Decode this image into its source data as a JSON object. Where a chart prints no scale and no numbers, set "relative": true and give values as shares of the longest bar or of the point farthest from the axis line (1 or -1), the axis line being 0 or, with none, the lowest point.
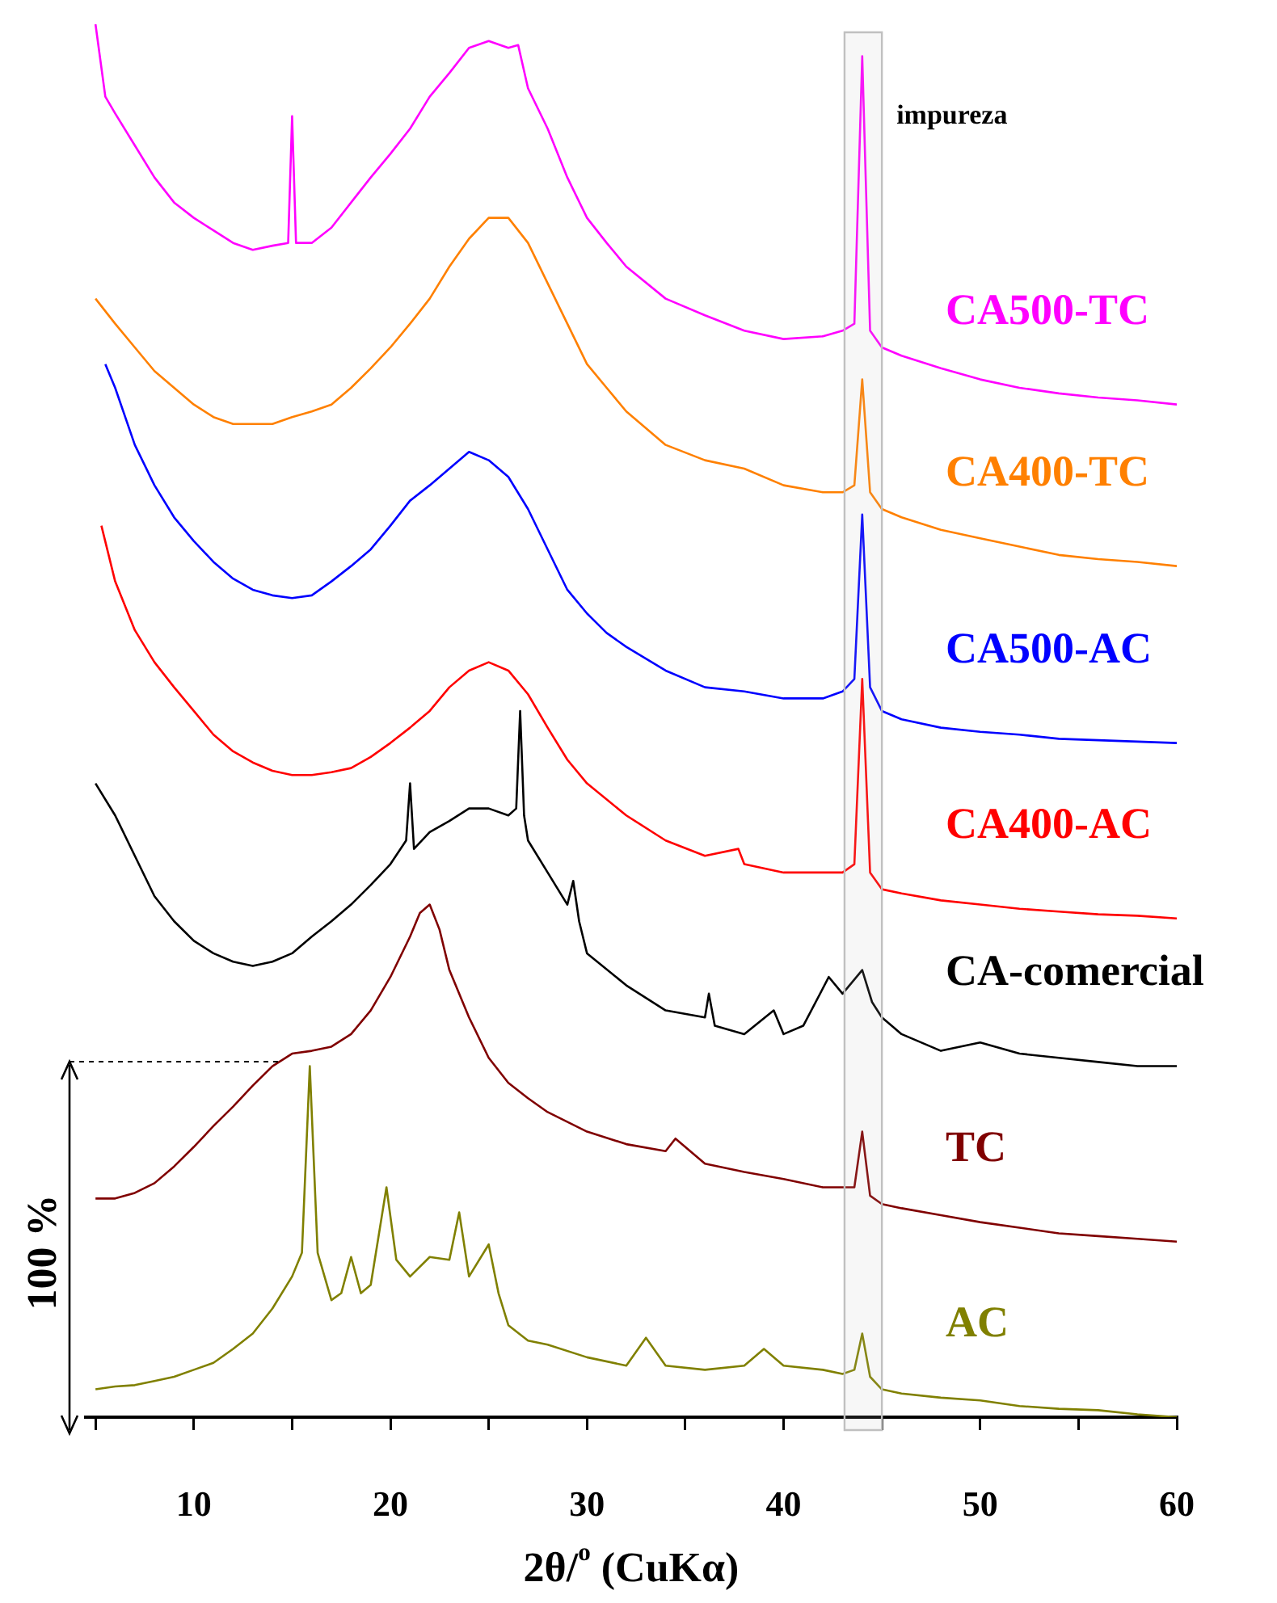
{
  "chart_data": {
    "type": "line",
    "relative": true,
    "xlabel": "2θ/$^{o}$ (CuKα)",
    "xlim": [
      4.5,
      60
    ],
    "tick_labels": "x",
    "xticks": [
      {
        "value": 5,
        "label": null
      },
      10,
      {
        "value": 15,
        "label": null
      },
      20,
      {
        "value": 25,
        "label": null
      },
      30,
      {
        "value": 35,
        "label": null
      },
      40,
      {
        "value": 45,
        "label": null
      },
      50,
      {
        "value": 55,
        "label": null
      },
      60
    ],
    "bands": [
      {
        "axis": "x",
        "from": 43.1,
        "to": 45.0,
        "label": "impureza",
        "color": "#c0c0c0"
      }
    ],
    "annotations": [
      "100 %"
    ],
    "series": [
      {
        "name": "CA500-TC",
        "color": "#ff00ff",
        "x": [
          5,
          5.5,
          6,
          7,
          8,
          9,
          10,
          11,
          12,
          13,
          14,
          14.8,
          15,
          15.2,
          16,
          17,
          18,
          19,
          20,
          21,
          22,
          23,
          24,
          25,
          26,
          26.5,
          27,
          28,
          29,
          30,
          31,
          32,
          34,
          36,
          38,
          40,
          42,
          43,
          43.6,
          44,
          44.4,
          45,
          46,
          48,
          50,
          52,
          54,
          56,
          58,
          60
        ],
        "values": [
          1.0,
          0.948,
          0.936,
          0.913,
          0.89,
          0.872,
          0.861,
          0.852,
          0.843,
          0.838,
          0.841,
          0.843,
          0.934,
          0.843,
          0.843,
          0.854,
          0.872,
          0.89,
          0.907,
          0.925,
          0.948,
          0.965,
          0.983,
          0.988,
          0.983,
          0.985,
          0.954,
          0.925,
          0.89,
          0.861,
          0.843,
          0.826,
          0.803,
          0.791,
          0.78,
          0.774,
          0.776,
          0.78,
          0.785,
          0.977,
          0.78,
          0.768,
          0.762,
          0.753,
          0.745,
          0.739,
          0.735,
          0.732,
          0.73,
          0.727
        ]
      },
      {
        "name": "CA400-TC",
        "color": "#ff8000",
        "x": [
          5,
          6,
          7,
          8,
          9,
          10,
          11,
          12,
          13,
          14,
          15,
          16,
          17,
          18,
          19,
          20,
          21,
          22,
          23,
          24,
          25,
          26,
          27,
          28,
          29,
          30,
          31,
          32,
          34,
          36,
          38,
          40,
          42,
          43,
          43.6,
          44,
          44.4,
          45,
          46,
          48,
          50,
          52,
          54,
          56,
          58,
          60
        ],
        "values": [
          0.803,
          0.785,
          0.768,
          0.751,
          0.739,
          0.727,
          0.718,
          0.713,
          0.713,
          0.713,
          0.718,
          0.722,
          0.727,
          0.739,
          0.753,
          0.768,
          0.785,
          0.803,
          0.826,
          0.846,
          0.861,
          0.861,
          0.843,
          0.814,
          0.785,
          0.756,
          0.739,
          0.722,
          0.698,
          0.687,
          0.681,
          0.669,
          0.664,
          0.664,
          0.669,
          0.745,
          0.664,
          0.652,
          0.646,
          0.637,
          0.631,
          0.625,
          0.619,
          0.616,
          0.614,
          0.611
        ]
      },
      {
        "name": "CA500-AC",
        "color": "#0000ff",
        "x": [
          5.5,
          6,
          7,
          8,
          9,
          10,
          11,
          12,
          13,
          14,
          15,
          16,
          17,
          18,
          19,
          20,
          21,
          22,
          23,
          24,
          25,
          26,
          27,
          28,
          29,
          30,
          31,
          32,
          34,
          36,
          38,
          40,
          42,
          43,
          43.6,
          44,
          44.4,
          45,
          46,
          48,
          50,
          52,
          54,
          56,
          58,
          60
        ],
        "values": [
          0.756,
          0.739,
          0.698,
          0.669,
          0.646,
          0.629,
          0.614,
          0.602,
          0.594,
          0.59,
          0.588,
          0.59,
          0.6,
          0.611,
          0.623,
          0.64,
          0.658,
          0.669,
          0.681,
          0.693,
          0.687,
          0.675,
          0.652,
          0.623,
          0.594,
          0.577,
          0.563,
          0.553,
          0.536,
          0.524,
          0.521,
          0.516,
          0.516,
          0.521,
          0.53,
          0.648,
          0.524,
          0.507,
          0.501,
          0.495,
          0.492,
          0.49,
          0.487,
          0.486,
          0.485,
          0.484
        ]
      },
      {
        "name": "CA400-AC",
        "color": "#ff0000",
        "x": [
          5.3,
          6,
          7,
          8,
          9,
          10,
          11,
          12,
          13,
          14,
          15,
          16,
          17,
          18,
          19,
          20,
          21,
          22,
          23,
          24,
          25,
          26,
          27,
          28,
          29,
          30,
          32,
          34,
          36,
          37.7,
          38,
          40,
          42,
          43,
          43.6,
          44,
          44.4,
          45,
          46,
          48,
          50,
          52,
          54,
          56,
          58,
          60
        ],
        "values": [
          0.64,
          0.6,
          0.565,
          0.542,
          0.524,
          0.507,
          0.49,
          0.478,
          0.47,
          0.464,
          0.461,
          0.461,
          0.463,
          0.466,
          0.474,
          0.484,
          0.495,
          0.507,
          0.524,
          0.536,
          0.542,
          0.536,
          0.519,
          0.495,
          0.472,
          0.455,
          0.432,
          0.414,
          0.403,
          0.408,
          0.397,
          0.391,
          0.391,
          0.391,
          0.397,
          0.53,
          0.391,
          0.379,
          0.376,
          0.371,
          0.368,
          0.365,
          0.363,
          0.361,
          0.36,
          0.358
        ]
      },
      {
        "name": "CA-comercial",
        "color": "#000000",
        "x": [
          5,
          6,
          7,
          8,
          9,
          10,
          11,
          12,
          13,
          14,
          15,
          16,
          17,
          18,
          19,
          20,
          20.8,
          21,
          21.2,
          22,
          23,
          24,
          25,
          26,
          26.4,
          26.6,
          26.8,
          27,
          28,
          29,
          29.3,
          29.6,
          30,
          32,
          34,
          36,
          36.2,
          36.5,
          38,
          39.5,
          40,
          41,
          42.3,
          43,
          44,
          44.5,
          45,
          46,
          48,
          50,
          52,
          54,
          56,
          58,
          60
        ],
        "values": [
          0.455,
          0.432,
          0.403,
          0.374,
          0.356,
          0.342,
          0.333,
          0.327,
          0.324,
          0.327,
          0.333,
          0.345,
          0.356,
          0.368,
          0.382,
          0.397,
          0.414,
          0.455,
          0.408,
          0.42,
          0.428,
          0.437,
          0.437,
          0.432,
          0.437,
          0.507,
          0.432,
          0.414,
          0.391,
          0.368,
          0.385,
          0.356,
          0.333,
          0.31,
          0.292,
          0.287,
          0.304,
          0.281,
          0.275,
          0.292,
          0.275,
          0.281,
          0.316,
          0.304,
          0.321,
          0.298,
          0.287,
          0.275,
          0.263,
          0.269,
          0.261,
          0.258,
          0.255,
          0.252,
          0.252
        ]
      },
      {
        "name": "TC",
        "color": "#800000",
        "x": [
          5,
          6,
          7,
          8,
          9,
          10,
          11,
          12,
          13,
          14,
          15,
          16,
          17,
          18,
          19,
          20,
          21,
          21.5,
          22,
          22.5,
          23,
          24,
          25,
          26,
          27,
          28,
          30,
          32,
          34,
          34.5,
          36,
          38,
          40,
          42,
          43,
          43.6,
          44,
          44.4,
          45,
          46,
          48,
          50,
          52,
          54,
          56,
          58,
          60
        ],
        "values": [
          0.157,
          0.157,
          0.161,
          0.168,
          0.18,
          0.194,
          0.209,
          0.223,
          0.238,
          0.252,
          0.261,
          0.263,
          0.266,
          0.275,
          0.292,
          0.316,
          0.345,
          0.362,
          0.368,
          0.35,
          0.321,
          0.287,
          0.258,
          0.24,
          0.229,
          0.219,
          0.205,
          0.196,
          0.191,
          0.2,
          0.182,
          0.176,
          0.171,
          0.165,
          0.165,
          0.165,
          0.205,
          0.159,
          0.153,
          0.15,
          0.145,
          0.14,
          0.136,
          0.132,
          0.13,
          0.128,
          0.126
        ]
      },
      {
        "name": "AC",
        "color": "#808000",
        "x": [
          5,
          6,
          7,
          8,
          9,
          10,
          11,
          12,
          13,
          14,
          15,
          15.5,
          15.9,
          16.3,
          17,
          17.5,
          18,
          18.5,
          19,
          19.8,
          20.3,
          21,
          22,
          23,
          23.5,
          24,
          25,
          25.5,
          26,
          27,
          28,
          30,
          32,
          33,
          34,
          36,
          38,
          39,
          40,
          42,
          43,
          43.6,
          44,
          44.4,
          45,
          46,
          48,
          50,
          52,
          54,
          56,
          58,
          60
        ],
        "values": [
          0.02,
          0.022,
          0.023,
          0.026,
          0.029,
          0.034,
          0.039,
          0.049,
          0.06,
          0.078,
          0.101,
          0.118,
          0.252,
          0.118,
          0.084,
          0.089,
          0.115,
          0.089,
          0.095,
          0.165,
          0.113,
          0.101,
          0.115,
          0.113,
          0.147,
          0.101,
          0.124,
          0.089,
          0.066,
          0.055,
          0.052,
          0.043,
          0.037,
          0.057,
          0.037,
          0.034,
          0.037,
          0.049,
          0.037,
          0.034,
          0.031,
          0.034,
          0.06,
          0.029,
          0.02,
          0.017,
          0.014,
          0.012,
          0.008,
          0.006,
          0.005,
          0.002,
          0
        ]
      }
    ]
  }
}
